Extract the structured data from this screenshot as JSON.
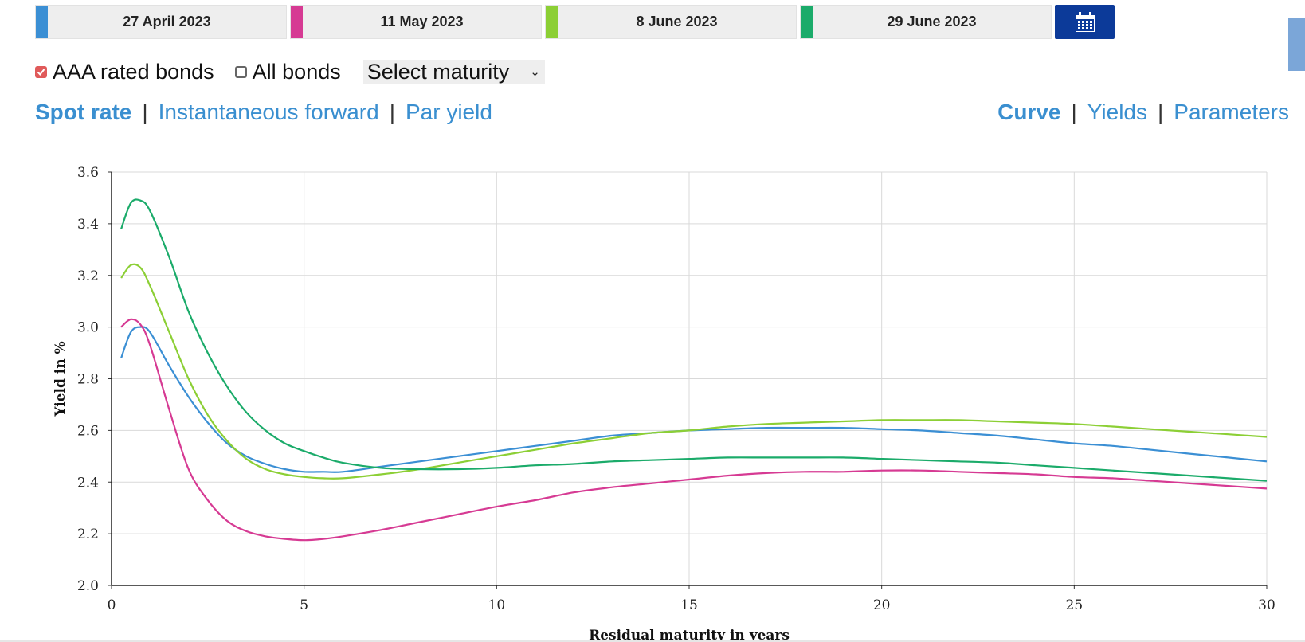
{
  "dates": [
    {
      "label": "27 April 2023",
      "color": "#3b8fd4"
    },
    {
      "label": "11 May 2023",
      "color": "#d63a93"
    },
    {
      "label": "8 June 2023",
      "color": "#8ccf35"
    },
    {
      "label": "29 June 2023",
      "color": "#1bab6a"
    }
  ],
  "calendar": {
    "icon": "calendar-icon",
    "bg": "#0c3a99"
  },
  "side_tab_color": "#7ba6d8",
  "options": {
    "aaa_label": "AAA rated bonds",
    "aaa_checked": true,
    "all_label": "All bonds",
    "all_checked": false,
    "maturity_select": "Select maturity",
    "check_color": "#e05a5a"
  },
  "link_color": "#3a8fd0",
  "rate_links": [
    {
      "label": "Spot rate",
      "active": true
    },
    {
      "label": "Instantaneous forward",
      "active": false
    },
    {
      "label": "Par yield",
      "active": false
    }
  ],
  "view_links": [
    {
      "label": "Curve",
      "active": true
    },
    {
      "label": "Yields",
      "active": false
    },
    {
      "label": "Parameters",
      "active": false
    }
  ],
  "chart_data": {
    "type": "line",
    "xlabel": "Residual maturity in years",
    "ylabel": "Yield in %",
    "xlim": [
      0,
      30
    ],
    "ylim": [
      2.0,
      3.6
    ],
    "xticks": [
      0,
      5,
      10,
      15,
      20,
      25,
      30
    ],
    "yticks": [
      "2.0",
      "2.2",
      "2.4",
      "2.6",
      "2.8",
      "3.0",
      "3.2",
      "3.4",
      "3.6"
    ],
    "grid": true,
    "x": [
      0.25,
      0.5,
      0.75,
      1,
      1.5,
      2,
      2.5,
      3,
      3.5,
      4,
      4.5,
      5,
      5.5,
      6,
      7,
      8,
      9,
      10,
      11,
      12,
      13,
      14,
      15,
      16,
      17,
      18,
      19,
      20,
      21,
      22,
      23,
      24,
      25,
      26,
      27,
      28,
      29,
      30
    ],
    "series": [
      {
        "name": "27 April 2023",
        "color": "#3b8fd4",
        "values": [
          2.88,
          2.98,
          3.0,
          2.98,
          2.85,
          2.73,
          2.63,
          2.55,
          2.5,
          2.47,
          2.45,
          2.44,
          2.44,
          2.44,
          2.46,
          2.48,
          2.5,
          2.52,
          2.54,
          2.56,
          2.58,
          2.59,
          2.6,
          2.605,
          2.61,
          2.61,
          2.61,
          2.605,
          2.6,
          2.59,
          2.58,
          2.565,
          2.55,
          2.54,
          2.525,
          2.51,
          2.495,
          2.48
        ]
      },
      {
        "name": "11 May 2023",
        "color": "#d63a93",
        "values": [
          3.0,
          3.03,
          3.01,
          2.93,
          2.68,
          2.45,
          2.33,
          2.25,
          2.21,
          2.19,
          2.18,
          2.175,
          2.18,
          2.19,
          2.215,
          2.245,
          2.275,
          2.305,
          2.33,
          2.36,
          2.38,
          2.395,
          2.41,
          2.425,
          2.435,
          2.44,
          2.44,
          2.445,
          2.445,
          2.44,
          2.435,
          2.43,
          2.42,
          2.415,
          2.405,
          2.395,
          2.385,
          2.375
        ]
      },
      {
        "name": "8 June 2023",
        "color": "#8ccf35",
        "values": [
          3.19,
          3.24,
          3.23,
          3.16,
          2.98,
          2.8,
          2.66,
          2.56,
          2.49,
          2.45,
          2.43,
          2.42,
          2.415,
          2.415,
          2.43,
          2.45,
          2.475,
          2.5,
          2.525,
          2.55,
          2.57,
          2.59,
          2.6,
          2.615,
          2.625,
          2.63,
          2.635,
          2.64,
          2.64,
          2.64,
          2.635,
          2.63,
          2.625,
          2.615,
          2.605,
          2.595,
          2.585,
          2.575
        ]
      },
      {
        "name": "29 June 2023",
        "color": "#1bab6a",
        "values": [
          3.38,
          3.48,
          3.49,
          3.45,
          3.27,
          3.06,
          2.9,
          2.77,
          2.67,
          2.6,
          2.55,
          2.52,
          2.495,
          2.475,
          2.455,
          2.45,
          2.45,
          2.455,
          2.465,
          2.47,
          2.48,
          2.485,
          2.49,
          2.495,
          2.495,
          2.495,
          2.495,
          2.49,
          2.485,
          2.48,
          2.475,
          2.465,
          2.455,
          2.445,
          2.435,
          2.425,
          2.415,
          2.405
        ]
      }
    ]
  }
}
